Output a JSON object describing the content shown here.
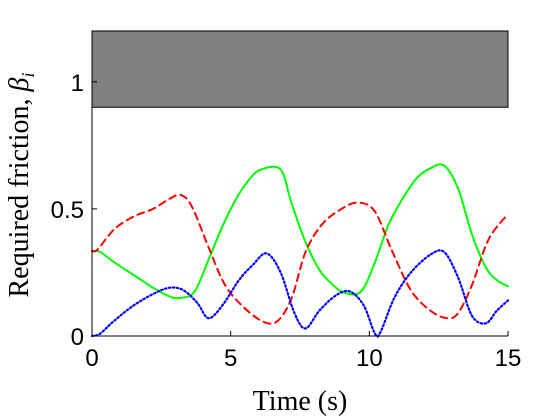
{
  "chart_data": {
    "type": "line",
    "title": "",
    "xlabel": "Time (s)",
    "ylabel": "Required friction, ",
    "ylabel_symbol": "β",
    "ylabel_subscript": "i",
    "xlim": [
      0,
      15
    ],
    "ylim": [
      0,
      1.2
    ],
    "xticks": [
      0,
      5,
      10,
      15
    ],
    "yticks": [
      0,
      0.5,
      1
    ],
    "ytick_labels": [
      "0",
      "0.5",
      "1"
    ],
    "xtick_labels": [
      "0",
      "5",
      "10",
      "15"
    ],
    "grid": false,
    "legend": "none",
    "shaded_band": {
      "y_from": 0.9,
      "y_to": 1.2,
      "color": "#808080"
    },
    "series": [
      {
        "color": "#00ff00",
        "line_style": "solid",
        "x": [
          0,
          0.3,
          0.8,
          1.5,
          2.2,
          2.8,
          3.2,
          3.7,
          4.2,
          4.7,
          5.2,
          5.7,
          6.1,
          6.8,
          7.2,
          7.7,
          8.2,
          8.7,
          9.1,
          9.7,
          10.2,
          10.7,
          11.2,
          11.7,
          12.2,
          12.7,
          13.2,
          13.7,
          14.2,
          14.6,
          15
        ],
        "y": [
          0.335,
          0.33,
          0.29,
          0.24,
          0.19,
          0.155,
          0.15,
          0.175,
          0.3,
          0.43,
          0.54,
          0.62,
          0.655,
          0.655,
          0.52,
          0.37,
          0.26,
          0.2,
          0.17,
          0.175,
          0.29,
          0.44,
          0.54,
          0.62,
          0.66,
          0.67,
          0.58,
          0.4,
          0.27,
          0.22,
          0.195
        ]
      },
      {
        "color": "#ff0000",
        "line_style": "dashed",
        "x": [
          0,
          0.2,
          0.8,
          1.5,
          2.2,
          2.8,
          3.2,
          3.6,
          4.2,
          4.8,
          5.5,
          6.2,
          6.7,
          7.2,
          7.7,
          8.3,
          9.0,
          9.6,
          10.2,
          10.8,
          11.5,
          12.2,
          12.8,
          13.2,
          13.7,
          14.3,
          15
        ],
        "y": [
          0.335,
          0.34,
          0.42,
          0.47,
          0.5,
          0.54,
          0.555,
          0.51,
          0.35,
          0.2,
          0.11,
          0.055,
          0.06,
          0.15,
          0.33,
          0.44,
          0.5,
          0.525,
          0.49,
          0.34,
          0.18,
          0.1,
          0.07,
          0.09,
          0.2,
          0.38,
          0.48
        ]
      },
      {
        "color": "#0000ff",
        "line_style": "dotted",
        "x": [
          0,
          0.3,
          0.8,
          1.5,
          2.2,
          2.8,
          3.3,
          3.8,
          4.2,
          4.7,
          5.3,
          5.8,
          6.3,
          6.8,
          7.3,
          7.7,
          8.2,
          8.8,
          9.3,
          9.8,
          10.2,
          10.4,
          10.9,
          11.5,
          12.2,
          12.7,
          13.2,
          13.7,
          14.2,
          14.6,
          15
        ],
        "y": [
          0,
          0.01,
          0.06,
          0.12,
          0.165,
          0.19,
          0.18,
          0.13,
          0.07,
          0.12,
          0.22,
          0.28,
          0.325,
          0.25,
          0.09,
          0.03,
          0.1,
          0.16,
          0.175,
          0.12,
          0.01,
          0.015,
          0.15,
          0.25,
          0.32,
          0.33,
          0.23,
          0.08,
          0.05,
          0.1,
          0.14
        ]
      }
    ]
  }
}
